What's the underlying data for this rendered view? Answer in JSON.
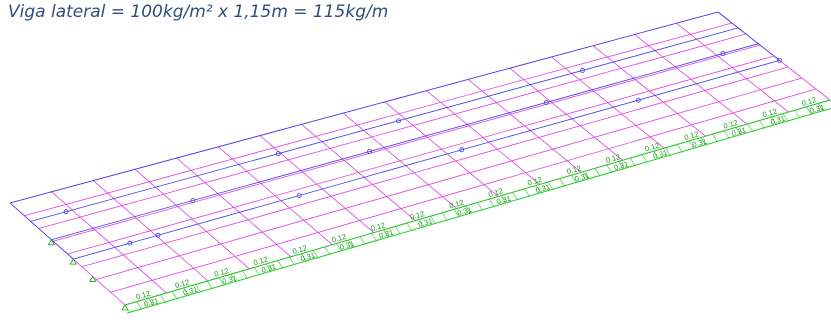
{
  "header": {
    "title": "Viga lateral = 100kg/m² x 1,15m = 115kg/m"
  },
  "loads": {
    "upper": [
      "0.12",
      "0.12",
      "0.12",
      "0.12",
      "0.12",
      "0.12",
      "0.12",
      "0.12",
      "0.12",
      "0.12",
      "0.12",
      "0.12",
      "0.12",
      "0.12",
      "0.12",
      "0.12",
      "0.12",
      "0.12"
    ],
    "lower": [
      "0.31",
      "0.31",
      "0.31",
      "0.31",
      "0.31",
      "0.31",
      "0.31",
      "0.31",
      "0.31",
      "0.31",
      "0.31",
      "0.31",
      "0.31",
      "0.31",
      "0.31",
      "0.31",
      "0.31",
      "0.31"
    ]
  }
}
